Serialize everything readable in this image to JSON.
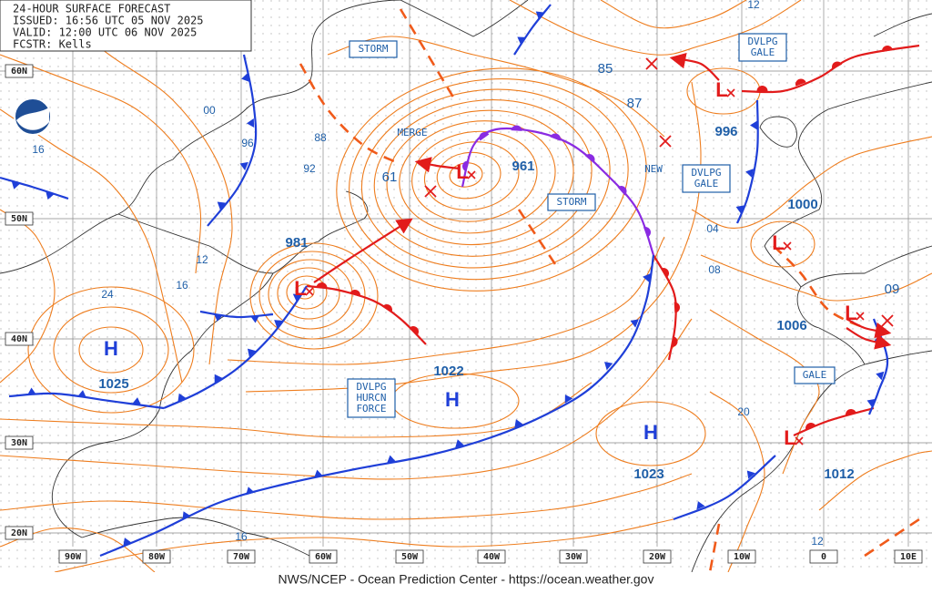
{
  "header": {
    "title": "24-HOUR SURFACE FORECAST",
    "issued": "ISSUED: 16:56 UTC 05 NOV 2025",
    "valid": "VALID:  12:00 UTC 06 NOV 2025",
    "forecaster": "FCSTR:  Kells"
  },
  "latitude_labels": [
    "60N",
    "50N",
    "40N",
    "30N",
    "20N"
  ],
  "longitude_labels": [
    "90W",
    "80W",
    "70W",
    "60W",
    "50W",
    "40W",
    "30W",
    "20W",
    "10W",
    "0",
    "10E"
  ],
  "pressure_centers": [
    {
      "symbol": "L",
      "pressure": 961
    },
    {
      "symbol": "L",
      "pressure": 981
    },
    {
      "symbol": "L",
      "pressure": 996
    },
    {
      "symbol": "L",
      "pressure": 1000
    },
    {
      "symbol": "L",
      "pressure": 1006
    },
    {
      "symbol": "L",
      "pressure": 1012
    },
    {
      "symbol": "H",
      "pressure": 1025
    },
    {
      "symbol": "H",
      "pressure": 1022
    },
    {
      "symbol": "H",
      "pressure": 1023
    }
  ],
  "isobar_labels": [
    "00",
    "96",
    "88",
    "92",
    "16",
    "12",
    "16",
    "24",
    "85",
    "87",
    "04",
    "08",
    "20",
    "12",
    "16",
    "12",
    "09",
    "61"
  ],
  "boxed_labels": [
    [
      "STORM"
    ],
    [
      "STORM"
    ],
    [
      "DVLPG",
      "GALE"
    ],
    [
      "DVLPG",
      "GALE"
    ],
    [
      "GALE"
    ],
    [
      "DVLPG",
      "HURCN",
      "FORCE"
    ]
  ],
  "annotations": [
    "MERGE",
    "NEW"
  ],
  "footer": "NWS/NCEP - Ocean Prediction Center - https://ocean.weather.gov"
}
